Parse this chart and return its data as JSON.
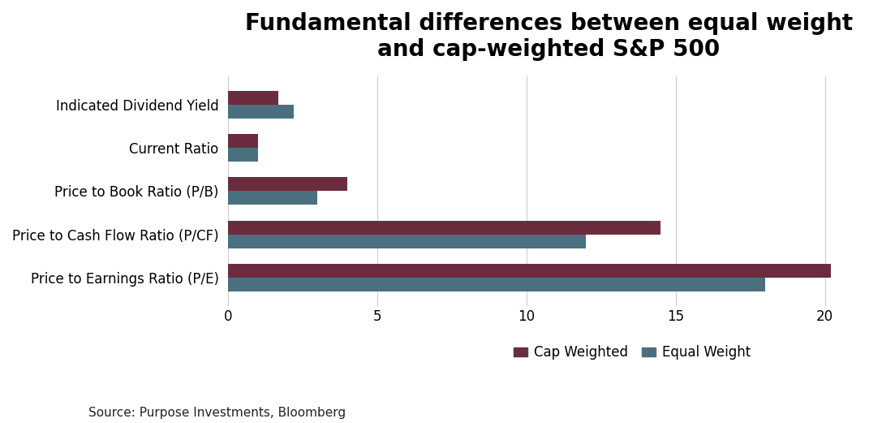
{
  "title": "Fundamental differences between equal weight\nand cap-weighted S&P 500",
  "categories": [
    "Price to Earnings Ratio (P/E)",
    "Price to Cash Flow Ratio (P/CF)",
    "Price to Book Ratio (P/B)",
    "Current Ratio",
    "Indicated Dividend Yield"
  ],
  "cap_weighted": [
    20.2,
    14.5,
    4.0,
    1.0,
    1.7
  ],
  "equal_weight": [
    18.0,
    12.0,
    3.0,
    1.0,
    2.2
  ],
  "cap_weighted_color": "#6B2D3E",
  "equal_weight_color": "#4A7080",
  "background_color": "#ffffff",
  "xlim": [
    0,
    21.5
  ],
  "xticks": [
    0,
    5,
    10,
    15,
    20
  ],
  "source_text": "Source: Purpose Investments, Bloomberg",
  "legend_labels": [
    "Cap Weighted",
    "Equal Weight"
  ],
  "bar_height": 0.32,
  "title_fontsize": 20,
  "axis_fontsize": 12,
  "source_fontsize": 11
}
